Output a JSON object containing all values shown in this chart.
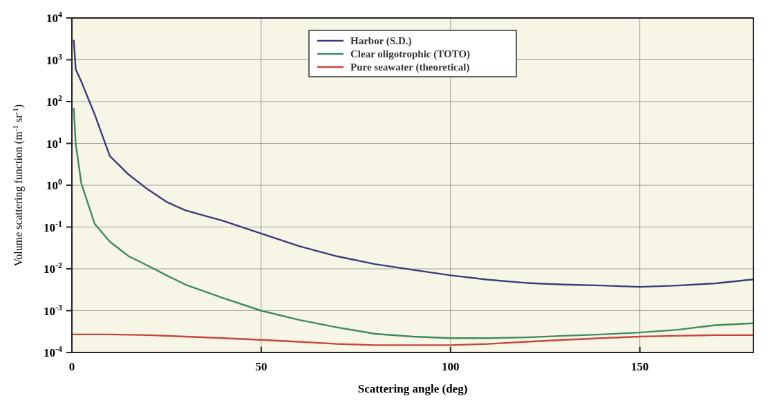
{
  "chart_data": {
    "type": "line",
    "xlabel": "Scattering angle (deg)",
    "ylabel": "Volume scattering function (m$^{-1}$ sr$^{-1}$)",
    "log": "y",
    "grid": true,
    "legend": "top",
    "line_style": "solid",
    "marker": "none",
    "xlim": [
      0,
      180
    ],
    "xticks": [
      0,
      50,
      100,
      150
    ],
    "ylim": [
      0.0001,
      10000
    ],
    "yticks": [
      {
        "value": 0.0001,
        "label": "10$^{-4}$"
      },
      {
        "value": 0.001,
        "label": "10$^{-3}$"
      },
      {
        "value": 0.01,
        "label": "10$^{-2}$"
      },
      {
        "value": 0.1,
        "label": "10$^{-1}$"
      },
      {
        "value": 1,
        "label": "10$^{0}$"
      },
      {
        "value": 10,
        "label": "10$^{1}$"
      },
      {
        "value": 100,
        "label": "10$^{2}$"
      },
      {
        "value": 1000,
        "label": "10$^{3}$"
      },
      {
        "value": 10000,
        "label": "10$^{4}$"
      }
    ],
    "series": [
      {
        "name": "Harbor (S.D.)",
        "color": "#3b3a7a",
        "x": [
          0.5,
          1,
          2.5,
          6,
          10,
          15,
          20,
          25,
          30,
          40,
          50,
          60,
          70,
          80,
          90,
          100,
          110,
          120,
          130,
          140,
          150,
          160,
          170,
          180
        ],
        "values": [
          3000,
          600,
          300,
          50,
          5,
          1.8,
          0.8,
          0.4,
          0.25,
          0.14,
          0.07,
          0.035,
          0.02,
          0.013,
          0.0095,
          0.007,
          0.0055,
          0.0046,
          0.0042,
          0.004,
          0.0037,
          0.004,
          0.0045,
          0.0056
        ]
      },
      {
        "name": "Clear oligotrophic (TOTO)",
        "color": "#3e8a5e",
        "x": [
          0.5,
          1,
          2.5,
          6,
          10,
          15,
          20,
          25,
          30,
          40,
          50,
          60,
          70,
          80,
          90,
          100,
          110,
          120,
          130,
          140,
          150,
          160,
          170,
          180
        ],
        "values": [
          70,
          10,
          1.1,
          0.12,
          0.045,
          0.02,
          0.012,
          0.007,
          0.0042,
          0.002,
          0.001,
          0.0006,
          0.0004,
          0.00028,
          0.00024,
          0.00022,
          0.00022,
          0.00023,
          0.00025,
          0.00027,
          0.0003,
          0.00035,
          0.00045,
          0.0005
        ]
      },
      {
        "name": "Pure seawater (theoretical)",
        "color": "#c8453c",
        "x": [
          0,
          10,
          20,
          30,
          40,
          50,
          60,
          70,
          80,
          90,
          100,
          110,
          120,
          130,
          140,
          150,
          160,
          170,
          180
        ],
        "values": [
          0.00027,
          0.00027,
          0.00026,
          0.00024,
          0.00022,
          0.0002,
          0.00018,
          0.00016,
          0.00015,
          0.00015,
          0.00015,
          0.00016,
          0.00018,
          0.0002,
          0.00022,
          0.00024,
          0.00025,
          0.00026,
          0.00026
        ]
      }
    ]
  }
}
